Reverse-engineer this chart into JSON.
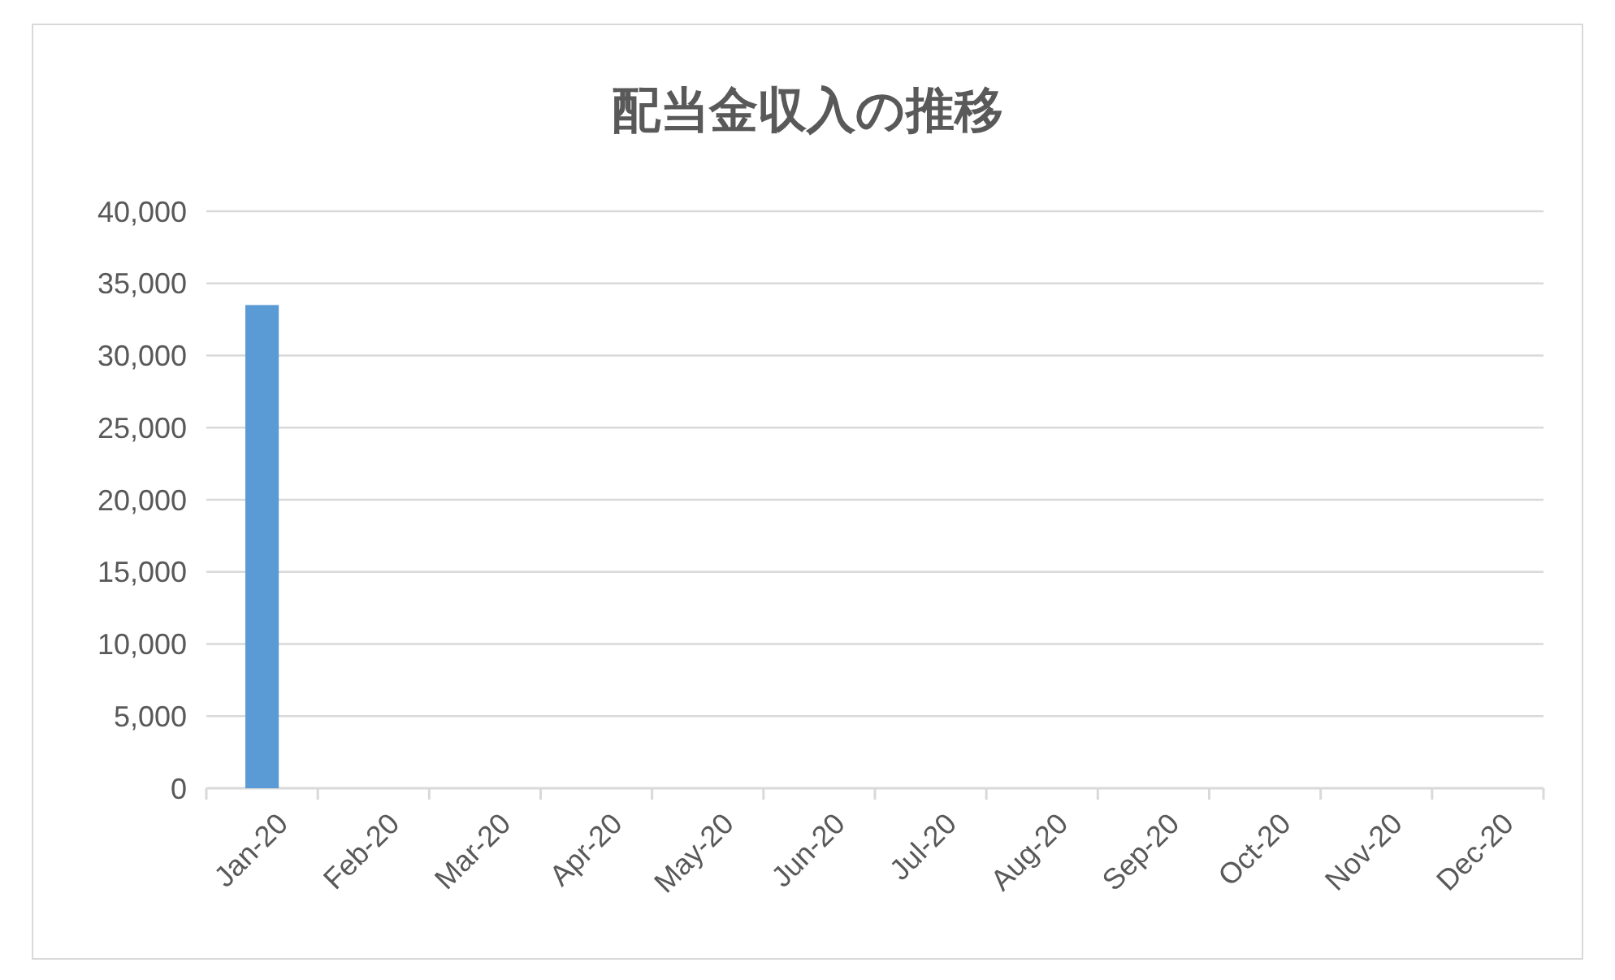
{
  "chart_data": {
    "type": "bar",
    "title": "配当金収入の推移",
    "categories": [
      "Jan-20",
      "Feb-20",
      "Mar-20",
      "Apr-20",
      "May-20",
      "Jun-20",
      "Jul-20",
      "Aug-20",
      "Sep-20",
      "Oct-20",
      "Nov-20",
      "Dec-20"
    ],
    "values": [
      33500,
      0,
      0,
      0,
      0,
      0,
      0,
      0,
      0,
      0,
      0,
      0
    ],
    "color": "#5b9bd5",
    "ylim": [
      0,
      40000
    ],
    "yticks": [
      {
        "value": 0,
        "label": "0"
      },
      {
        "value": 5000,
        "label": "5,000"
      },
      {
        "value": 10000,
        "label": "10,000"
      },
      {
        "value": 15000,
        "label": "15,000"
      },
      {
        "value": 20000,
        "label": "20,000"
      },
      {
        "value": 25000,
        "label": "25,000"
      },
      {
        "value": 30000,
        "label": "30,000"
      },
      {
        "value": 35000,
        "label": "35,000"
      },
      {
        "value": 40000,
        "label": "40,000"
      }
    ],
    "grid": "y"
  }
}
